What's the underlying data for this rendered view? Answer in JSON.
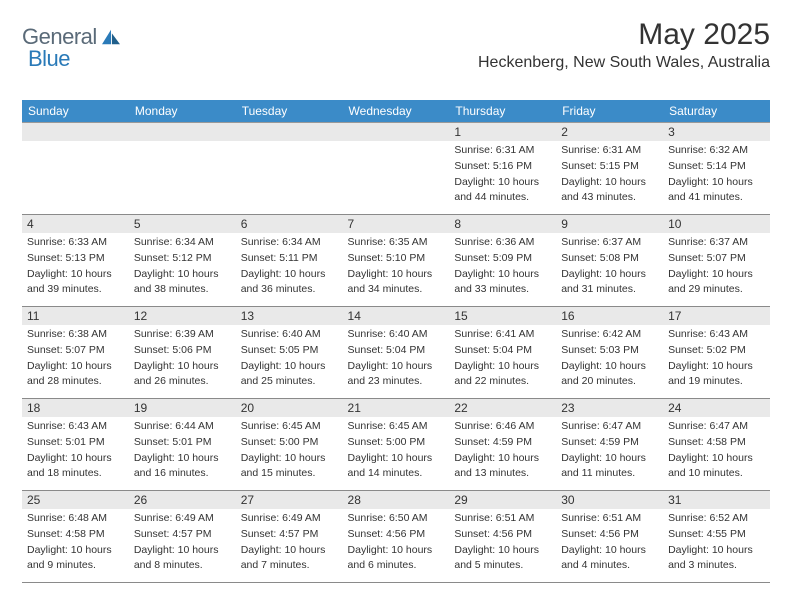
{
  "branding": {
    "text1": "General",
    "text2": "Blue"
  },
  "title": "May 2025",
  "location": "Heckenberg, New South Wales, Australia",
  "colors": {
    "header_bg": "#3b8bc8",
    "header_text": "#ffffff",
    "daynum_bg": "#e9e9e9",
    "border": "#8a8a8a",
    "logo_gray": "#5a6a78",
    "logo_blue": "#2a7ab8"
  },
  "day_headers": [
    "Sunday",
    "Monday",
    "Tuesday",
    "Wednesday",
    "Thursday",
    "Friday",
    "Saturday"
  ],
  "weeks": [
    [
      null,
      null,
      null,
      null,
      {
        "n": "1",
        "sr": "6:31 AM",
        "ss": "5:16 PM",
        "dl": "10 hours and 44 minutes."
      },
      {
        "n": "2",
        "sr": "6:31 AM",
        "ss": "5:15 PM",
        "dl": "10 hours and 43 minutes."
      },
      {
        "n": "3",
        "sr": "6:32 AM",
        "ss": "5:14 PM",
        "dl": "10 hours and 41 minutes."
      }
    ],
    [
      {
        "n": "4",
        "sr": "6:33 AM",
        "ss": "5:13 PM",
        "dl": "10 hours and 39 minutes."
      },
      {
        "n": "5",
        "sr": "6:34 AM",
        "ss": "5:12 PM",
        "dl": "10 hours and 38 minutes."
      },
      {
        "n": "6",
        "sr": "6:34 AM",
        "ss": "5:11 PM",
        "dl": "10 hours and 36 minutes."
      },
      {
        "n": "7",
        "sr": "6:35 AM",
        "ss": "5:10 PM",
        "dl": "10 hours and 34 minutes."
      },
      {
        "n": "8",
        "sr": "6:36 AM",
        "ss": "5:09 PM",
        "dl": "10 hours and 33 minutes."
      },
      {
        "n": "9",
        "sr": "6:37 AM",
        "ss": "5:08 PM",
        "dl": "10 hours and 31 minutes."
      },
      {
        "n": "10",
        "sr": "6:37 AM",
        "ss": "5:07 PM",
        "dl": "10 hours and 29 minutes."
      }
    ],
    [
      {
        "n": "11",
        "sr": "6:38 AM",
        "ss": "5:07 PM",
        "dl": "10 hours and 28 minutes."
      },
      {
        "n": "12",
        "sr": "6:39 AM",
        "ss": "5:06 PM",
        "dl": "10 hours and 26 minutes."
      },
      {
        "n": "13",
        "sr": "6:40 AM",
        "ss": "5:05 PM",
        "dl": "10 hours and 25 minutes."
      },
      {
        "n": "14",
        "sr": "6:40 AM",
        "ss": "5:04 PM",
        "dl": "10 hours and 23 minutes."
      },
      {
        "n": "15",
        "sr": "6:41 AM",
        "ss": "5:04 PM",
        "dl": "10 hours and 22 minutes."
      },
      {
        "n": "16",
        "sr": "6:42 AM",
        "ss": "5:03 PM",
        "dl": "10 hours and 20 minutes."
      },
      {
        "n": "17",
        "sr": "6:43 AM",
        "ss": "5:02 PM",
        "dl": "10 hours and 19 minutes."
      }
    ],
    [
      {
        "n": "18",
        "sr": "6:43 AM",
        "ss": "5:01 PM",
        "dl": "10 hours and 18 minutes."
      },
      {
        "n": "19",
        "sr": "6:44 AM",
        "ss": "5:01 PM",
        "dl": "10 hours and 16 minutes."
      },
      {
        "n": "20",
        "sr": "6:45 AM",
        "ss": "5:00 PM",
        "dl": "10 hours and 15 minutes."
      },
      {
        "n": "21",
        "sr": "6:45 AM",
        "ss": "5:00 PM",
        "dl": "10 hours and 14 minutes."
      },
      {
        "n": "22",
        "sr": "6:46 AM",
        "ss": "4:59 PM",
        "dl": "10 hours and 13 minutes."
      },
      {
        "n": "23",
        "sr": "6:47 AM",
        "ss": "4:59 PM",
        "dl": "10 hours and 11 minutes."
      },
      {
        "n": "24",
        "sr": "6:47 AM",
        "ss": "4:58 PM",
        "dl": "10 hours and 10 minutes."
      }
    ],
    [
      {
        "n": "25",
        "sr": "6:48 AM",
        "ss": "4:58 PM",
        "dl": "10 hours and 9 minutes."
      },
      {
        "n": "26",
        "sr": "6:49 AM",
        "ss": "4:57 PM",
        "dl": "10 hours and 8 minutes."
      },
      {
        "n": "27",
        "sr": "6:49 AM",
        "ss": "4:57 PM",
        "dl": "10 hours and 7 minutes."
      },
      {
        "n": "28",
        "sr": "6:50 AM",
        "ss": "4:56 PM",
        "dl": "10 hours and 6 minutes."
      },
      {
        "n": "29",
        "sr": "6:51 AM",
        "ss": "4:56 PM",
        "dl": "10 hours and 5 minutes."
      },
      {
        "n": "30",
        "sr": "6:51 AM",
        "ss": "4:56 PM",
        "dl": "10 hours and 4 minutes."
      },
      {
        "n": "31",
        "sr": "6:52 AM",
        "ss": "4:55 PM",
        "dl": "10 hours and 3 minutes."
      }
    ]
  ],
  "labels": {
    "sunrise": "Sunrise:",
    "sunset": "Sunset:",
    "daylight": "Daylight:"
  }
}
